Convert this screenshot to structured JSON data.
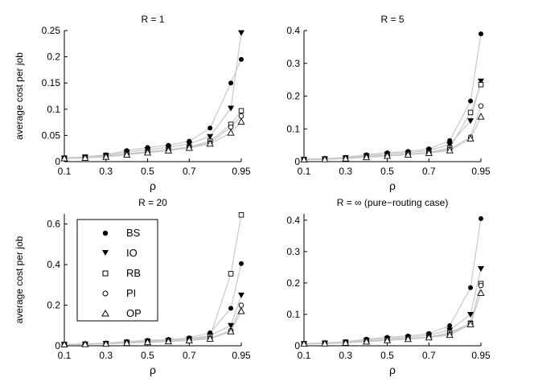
{
  "figure": {
    "ylabel": "average cost per job",
    "xlabel": "ρ"
  },
  "legend": {
    "entries": [
      {
        "label": "BS",
        "marker": "filled-circle"
      },
      {
        "label": "IO",
        "marker": "filled-down-triangle"
      },
      {
        "label": "RB",
        "marker": "open-square"
      },
      {
        "label": "PI",
        "marker": "open-circle"
      },
      {
        "label": "OP",
        "marker": "open-up-triangle"
      }
    ]
  },
  "chart_data": [
    {
      "type": "line",
      "title": "R = 1",
      "xlabel": "ρ",
      "ylabel": "average cost per job",
      "x": [
        0.1,
        0.2,
        0.3,
        0.4,
        0.5,
        0.6,
        0.7,
        0.8,
        0.9,
        0.95
      ],
      "xlim": [
        0.1,
        0.95
      ],
      "ylim": [
        0,
        0.25
      ],
      "xticks": [
        "0.1",
        "0.3",
        "0.5",
        "0.7",
        "0.95"
      ],
      "xtick_values": [
        0.1,
        0.3,
        0.5,
        0.7,
        0.95
      ],
      "yticks": [
        "0",
        "0.05",
        "0.1",
        "0.15",
        "0.2",
        "0.25"
      ],
      "ytick_values": [
        0,
        0.05,
        0.1,
        0.15,
        0.2,
        0.25
      ],
      "series": [
        {
          "name": "BS",
          "values": [
            0.007,
            0.009,
            0.013,
            0.021,
            0.027,
            0.031,
            0.039,
            0.064,
            0.15,
            0.195
          ]
        },
        {
          "name": "IO",
          "values": [
            0.007,
            0.009,
            0.012,
            0.018,
            0.023,
            0.027,
            0.034,
            0.048,
            0.102,
            0.246
          ]
        },
        {
          "name": "RB",
          "values": [
            0.006,
            0.007,
            0.01,
            0.015,
            0.019,
            0.023,
            0.028,
            0.039,
            0.071,
            0.097
          ]
        },
        {
          "name": "PI",
          "values": [
            0.006,
            0.007,
            0.01,
            0.014,
            0.018,
            0.022,
            0.027,
            0.036,
            0.066,
            0.087
          ]
        },
        {
          "name": "OP",
          "values": [
            0.006,
            0.007,
            0.009,
            0.013,
            0.017,
            0.021,
            0.026,
            0.034,
            0.055,
            0.076
          ]
        }
      ]
    },
    {
      "type": "line",
      "title": "R = 5",
      "xlabel": "ρ",
      "ylabel": "",
      "x": [
        0.1,
        0.2,
        0.3,
        0.4,
        0.5,
        0.6,
        0.7,
        0.8,
        0.9,
        0.95
      ],
      "xlim": [
        0.1,
        0.95
      ],
      "ylim": [
        0,
        0.4
      ],
      "xticks": [
        "0.1",
        "0.3",
        "0.5",
        "0.7",
        "0.95"
      ],
      "xtick_values": [
        0.1,
        0.3,
        0.5,
        0.7,
        0.95
      ],
      "yticks": [
        "0",
        "0.1",
        "0.2",
        "0.3",
        "0.4"
      ],
      "ytick_values": [
        0,
        0.1,
        0.2,
        0.3,
        0.4
      ],
      "series": [
        {
          "name": "BS",
          "values": [
            0.007,
            0.009,
            0.013,
            0.021,
            0.027,
            0.031,
            0.039,
            0.064,
            0.185,
            0.39
          ]
        },
        {
          "name": "IO",
          "values": [
            0.007,
            0.009,
            0.012,
            0.018,
            0.023,
            0.027,
            0.034,
            0.052,
            0.125,
            0.246
          ]
        },
        {
          "name": "RB",
          "values": [
            0.006,
            0.007,
            0.01,
            0.015,
            0.019,
            0.023,
            0.028,
            0.042,
            0.15,
            0.235
          ]
        },
        {
          "name": "PI",
          "values": [
            0.006,
            0.007,
            0.01,
            0.014,
            0.018,
            0.022,
            0.027,
            0.038,
            0.075,
            0.17
          ]
        },
        {
          "name": "OP",
          "values": [
            0.006,
            0.007,
            0.009,
            0.013,
            0.017,
            0.021,
            0.026,
            0.034,
            0.07,
            0.137
          ]
        }
      ]
    },
    {
      "type": "line",
      "title": "R = 20",
      "xlabel": "ρ",
      "ylabel": "average cost per job",
      "x": [
        0.1,
        0.2,
        0.3,
        0.4,
        0.5,
        0.6,
        0.7,
        0.8,
        0.9,
        0.95
      ],
      "xlim": [
        0.1,
        0.95
      ],
      "ylim": [
        0,
        0.65
      ],
      "xticks": [
        "0.1",
        "0.3",
        "0.5",
        "0.7",
        "0.95"
      ],
      "xtick_values": [
        0.1,
        0.3,
        0.5,
        0.7,
        0.95
      ],
      "yticks": [
        "0",
        "0.2",
        "0.4",
        "0.6"
      ],
      "ytick_values": [
        0,
        0.2,
        0.4,
        0.6
      ],
      "series": [
        {
          "name": "BS",
          "values": [
            0.007,
            0.009,
            0.013,
            0.021,
            0.027,
            0.031,
            0.039,
            0.064,
            0.185,
            0.405
          ]
        },
        {
          "name": "IO",
          "values": [
            0.007,
            0.009,
            0.012,
            0.018,
            0.023,
            0.027,
            0.034,
            0.05,
            0.1,
            0.25
          ]
        },
        {
          "name": "RB",
          "values": [
            0.006,
            0.007,
            0.01,
            0.015,
            0.019,
            0.023,
            0.028,
            0.045,
            0.355,
            0.645
          ]
        },
        {
          "name": "PI",
          "values": [
            0.006,
            0.007,
            0.01,
            0.014,
            0.018,
            0.022,
            0.027,
            0.038,
            0.075,
            0.2
          ]
        },
        {
          "name": "OP",
          "values": [
            0.006,
            0.007,
            0.009,
            0.013,
            0.017,
            0.021,
            0.026,
            0.034,
            0.07,
            0.17
          ]
        }
      ]
    },
    {
      "type": "line",
      "title": "R = ∞ (pure−routing case)",
      "xlabel": "ρ",
      "ylabel": "",
      "x": [
        0.1,
        0.2,
        0.3,
        0.4,
        0.5,
        0.6,
        0.7,
        0.8,
        0.9,
        0.95
      ],
      "xlim": [
        0.1,
        0.95
      ],
      "ylim": [
        0,
        0.42
      ],
      "xticks": [
        "0.1",
        "0.3",
        "0.5",
        "0.7",
        "0.95"
      ],
      "xtick_values": [
        0.1,
        0.3,
        0.5,
        0.7,
        0.95
      ],
      "yticks": [
        "0",
        "0.1",
        "0.2",
        "0.3",
        "0.4"
      ],
      "ytick_values": [
        0,
        0.1,
        0.2,
        0.3,
        0.4
      ],
      "series": [
        {
          "name": "BS",
          "values": [
            0.007,
            0.009,
            0.013,
            0.021,
            0.027,
            0.031,
            0.039,
            0.064,
            0.185,
            0.405
          ]
        },
        {
          "name": "IO",
          "values": [
            0.007,
            0.009,
            0.012,
            0.018,
            0.023,
            0.027,
            0.034,
            0.05,
            0.1,
            0.246
          ]
        },
        {
          "name": "RB",
          "values": [
            0.006,
            0.007,
            0.01,
            0.015,
            0.019,
            0.023,
            0.028,
            0.042,
            0.072,
            0.198
          ]
        },
        {
          "name": "PI",
          "values": [
            0.006,
            0.007,
            0.01,
            0.014,
            0.018,
            0.022,
            0.027,
            0.038,
            0.072,
            0.192
          ]
        },
        {
          "name": "OP",
          "values": [
            0.006,
            0.007,
            0.009,
            0.013,
            0.017,
            0.021,
            0.026,
            0.034,
            0.068,
            0.168
          ]
        }
      ]
    }
  ]
}
